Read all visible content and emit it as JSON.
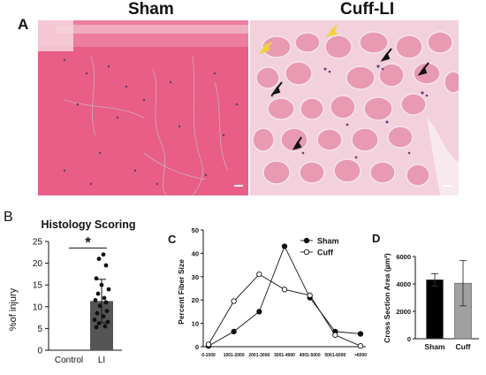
{
  "panel_a": {
    "letter": "A",
    "left_title": "Sham",
    "right_title": "Cuff-LI",
    "colors": {
      "tissue": "#ea5f86",
      "tissue_light": "#f7b8c8",
      "injured": "#e7a0b4",
      "scale_bar": "#ffffff",
      "arrow_black": "#111111",
      "arrow_yellow": "#f2d23a"
    }
  },
  "panel_b": {
    "letter": "B",
    "chart_data": {
      "type": "bar",
      "title": "Histology Scoring",
      "xlabel": "",
      "ylabel": "%of injury",
      "categories": [
        "Control",
        "LI"
      ],
      "values": [
        0,
        11.3
      ],
      "error": [
        0,
        5
      ],
      "ylim": [
        0,
        25
      ],
      "yticks": [
        0,
        5,
        10,
        15,
        20,
        25
      ],
      "points": [
        5.3,
        5.5,
        6.2,
        6.5,
        7,
        7.8,
        8.5,
        9,
        10.2,
        11,
        11.5,
        12,
        13,
        14,
        15,
        16.5,
        19.5,
        21,
        22
      ],
      "significance": "*",
      "bar_color": "#555555",
      "point_color": "#111111"
    }
  },
  "panel_c": {
    "letter": "C",
    "chart_data": {
      "type": "line",
      "title": "",
      "xlabel": "",
      "ylabel": "Percent Fiber Size",
      "categories": [
        "0-1000",
        "1001-2000",
        "2001-3000",
        "3001-4000",
        "4001-5000",
        "5001-6000",
        ">6000"
      ],
      "ylim": [
        0,
        50
      ],
      "yticks": [
        0,
        10,
        20,
        30,
        40,
        50
      ],
      "legend": "top-right",
      "series": [
        {
          "name": "Sham",
          "marker": "filled",
          "values": [
            0.3,
            6.5,
            15,
            43,
            21,
            6.5,
            5.5
          ]
        },
        {
          "name": "Cuff",
          "marker": "open",
          "values": [
            1,
            19.5,
            31,
            24.5,
            22,
            5,
            0.3
          ]
        }
      ]
    }
  },
  "panel_d": {
    "letter": "D",
    "chart_data": {
      "type": "bar",
      "title": "",
      "xlabel": "",
      "ylabel": "Cross Section Area (µm²)",
      "categories": [
        "Sham",
        "Cuff"
      ],
      "values": [
        4300,
        4050
      ],
      "error": [
        450,
        1650
      ],
      "ylim": [
        0,
        6000
      ],
      "yticks": [
        0,
        2000,
        4000,
        6000
      ],
      "colors": [
        "#000000",
        "#a0a0a0"
      ]
    }
  }
}
